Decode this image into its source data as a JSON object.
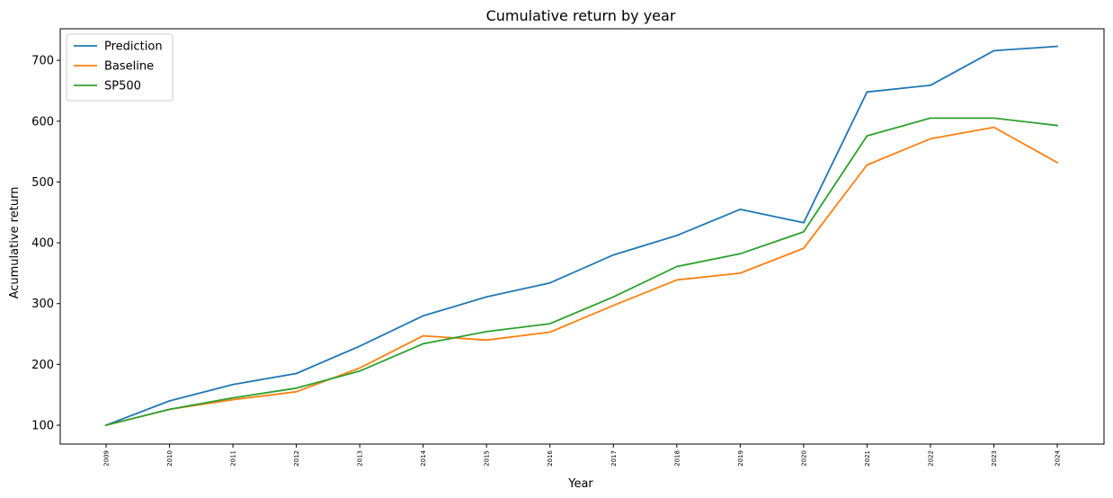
{
  "chart_data": {
    "type": "line",
    "title": "Cumulative return by year",
    "xlabel": "Year",
    "ylabel": "Acumulative return",
    "categories": [
      "2009",
      "2010",
      "2011",
      "2012",
      "2013",
      "2014",
      "2015",
      "2016",
      "2017",
      "2018",
      "2019",
      "2020",
      "2021",
      "2022",
      "2023",
      "2024"
    ],
    "yticks": [
      100,
      200,
      300,
      400,
      500,
      600,
      700
    ],
    "ylim": [
      69,
      752
    ],
    "grid": false,
    "legend_position": "top-left",
    "series": [
      {
        "name": "Prediction",
        "color": "#1f77b4",
        "values": [
          100,
          140,
          167,
          185,
          230,
          280,
          311,
          334,
          380,
          412,
          455,
          433,
          648,
          659,
          716,
          723
        ]
      },
      {
        "name": "Baseline",
        "color": "#ff7f0e",
        "values": [
          100,
          126,
          142,
          155,
          194,
          247,
          240,
          253,
          297,
          339,
          350,
          391,
          528,
          571,
          590,
          532
        ]
      },
      {
        "name": "SP500",
        "color": "#2ca02c",
        "values": [
          100,
          126,
          145,
          161,
          189,
          234,
          254,
          267,
          311,
          361,
          382,
          418,
          576,
          605,
          605,
          593
        ]
      }
    ]
  }
}
